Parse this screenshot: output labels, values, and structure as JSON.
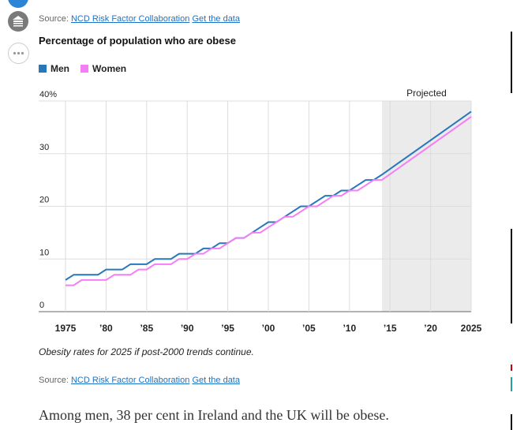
{
  "sources": {
    "top": {
      "prefix": "Source:",
      "link_label": "NCD Risk Factor Collaboration",
      "data_label": "Get the data"
    },
    "bottom": {
      "prefix": "Source:",
      "link_label": "NCD Risk Factor Collaboration",
      "data_label": "Get the data"
    }
  },
  "side_icons": [
    "news-icon",
    "more-icon"
  ],
  "caption": "Obesity rates for 2025 if post-2000 trends continue.",
  "body_text": "Among men, 38 per cent in Ireland and the UK will be obese.",
  "colors": {
    "men": "#2877b9",
    "women": "#f47ff5",
    "projected_band": "#ebebeb",
    "grid": "#dddddd",
    "link": "#1a73c8"
  },
  "chart_data": {
    "type": "line",
    "title": "Percentage of population who are obese",
    "xlim": [
      1975,
      2025
    ],
    "ylim": [
      0,
      40
    ],
    "x_ticks": [
      {
        "value": 1975,
        "label": "1975"
      },
      {
        "value": 1980,
        "label": "’80"
      },
      {
        "value": 1985,
        "label": "’85"
      },
      {
        "value": 1990,
        "label": "’90"
      },
      {
        "value": 1995,
        "label": "’95"
      },
      {
        "value": 2000,
        "label": "’00"
      },
      {
        "value": 2005,
        "label": "’05"
      },
      {
        "value": 2010,
        "label": "’10"
      },
      {
        "value": 2015,
        "label": "’15"
      },
      {
        "value": 2020,
        "label": "’20"
      },
      {
        "value": 2025,
        "label": "2025"
      }
    ],
    "y_ticks": [
      {
        "value": 0,
        "label": "0"
      },
      {
        "value": 10,
        "label": "10"
      },
      {
        "value": 20,
        "label": "20"
      },
      {
        "value": 30,
        "label": "30"
      },
      {
        "value": 40,
        "label": "40%"
      }
    ],
    "projected": {
      "label": "Projected",
      "from": 2014,
      "to": 2025
    },
    "grid": true,
    "legend_position": "top-left",
    "series": [
      {
        "name": "Men",
        "color": "#2877b9",
        "points": [
          [
            1975,
            6
          ],
          [
            1976,
            7
          ],
          [
            1979,
            7
          ],
          [
            1980,
            8
          ],
          [
            1982,
            8
          ],
          [
            1983,
            9
          ],
          [
            1985,
            9
          ],
          [
            1986,
            10
          ],
          [
            1988,
            10
          ],
          [
            1989,
            11
          ],
          [
            1991,
            11
          ],
          [
            1992,
            12
          ],
          [
            1993,
            12
          ],
          [
            1994,
            13
          ],
          [
            1995,
            13
          ],
          [
            1996,
            14
          ],
          [
            1997,
            14
          ],
          [
            1998,
            15
          ],
          [
            1999,
            16
          ],
          [
            2000,
            17
          ],
          [
            2001,
            17
          ],
          [
            2002,
            18
          ],
          [
            2003,
            19
          ],
          [
            2004,
            20
          ],
          [
            2005,
            20
          ],
          [
            2006,
            21
          ],
          [
            2007,
            22
          ],
          [
            2008,
            22
          ],
          [
            2009,
            23
          ],
          [
            2010,
            23
          ],
          [
            2011,
            24
          ],
          [
            2012,
            25
          ],
          [
            2013,
            25
          ],
          [
            2014,
            26
          ],
          [
            2025,
            38
          ]
        ]
      },
      {
        "name": "Women",
        "color": "#f47ff5",
        "points": [
          [
            1975,
            5
          ],
          [
            1976,
            5
          ],
          [
            1977,
            6
          ],
          [
            1980,
            6
          ],
          [
            1981,
            7
          ],
          [
            1983,
            7
          ],
          [
            1984,
            8
          ],
          [
            1985,
            8
          ],
          [
            1986,
            9
          ],
          [
            1988,
            9
          ],
          [
            1989,
            10
          ],
          [
            1990,
            10
          ],
          [
            1991,
            11
          ],
          [
            1992,
            11
          ],
          [
            1993,
            12
          ],
          [
            1994,
            12
          ],
          [
            1995,
            13
          ],
          [
            1996,
            14
          ],
          [
            1997,
            14
          ],
          [
            1998,
            15
          ],
          [
            1999,
            15
          ],
          [
            2000,
            16
          ],
          [
            2001,
            17
          ],
          [
            2002,
            18
          ],
          [
            2003,
            18
          ],
          [
            2004,
            19
          ],
          [
            2005,
            20
          ],
          [
            2006,
            20
          ],
          [
            2007,
            21
          ],
          [
            2008,
            22
          ],
          [
            2009,
            22
          ],
          [
            2010,
            23
          ],
          [
            2011,
            23
          ],
          [
            2012,
            24
          ],
          [
            2013,
            25
          ],
          [
            2014,
            25
          ],
          [
            2025,
            37
          ]
        ]
      }
    ]
  }
}
